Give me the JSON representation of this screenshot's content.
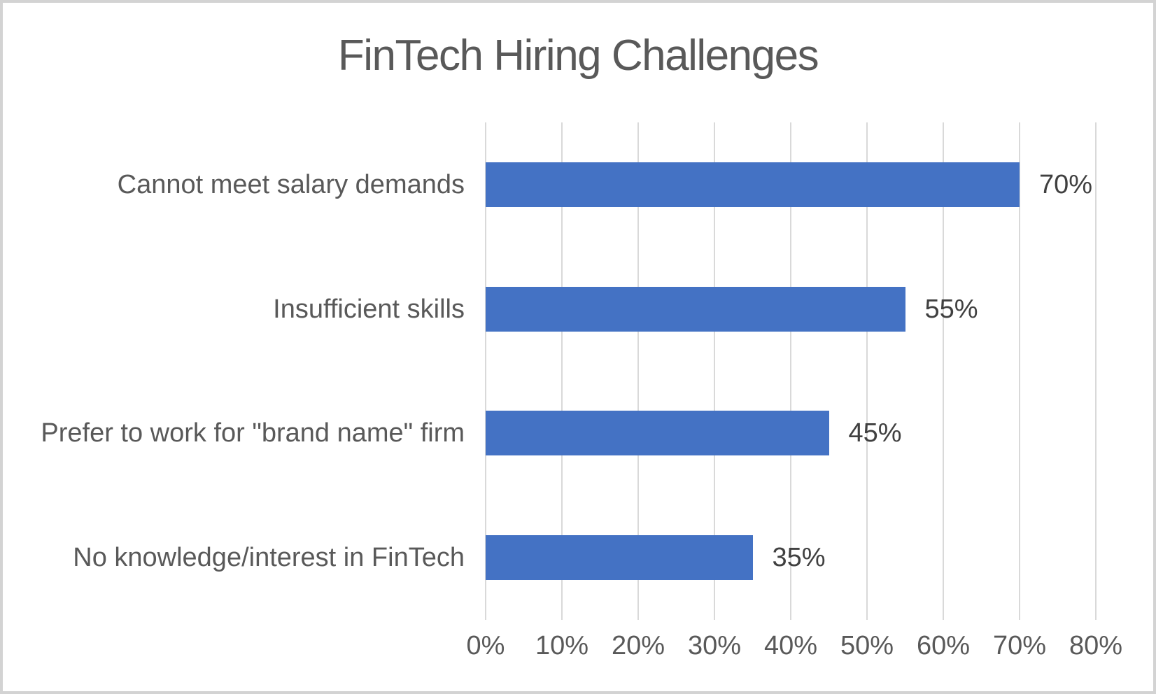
{
  "chart_data": {
    "type": "bar",
    "orientation": "horizontal",
    "title": "FinTech Hiring Challenges",
    "categories": [
      "Cannot meet salary demands",
      "Insufficient skills",
      "Prefer to work for \"brand name\" firm",
      "No knowledge/interest in FinTech"
    ],
    "values": [
      70,
      55,
      45,
      35
    ],
    "data_labels": [
      "70%",
      "55%",
      "45%",
      "35%"
    ],
    "x_ticks": [
      "0%",
      "10%",
      "20%",
      "30%",
      "40%",
      "50%",
      "60%",
      "70%",
      "80%"
    ],
    "xlim": [
      0,
      80
    ],
    "grid": true,
    "legend": false,
    "colors": {
      "bar": "#4472C4",
      "title": "#595959",
      "axis_labels": "#595959",
      "data_labels": "#404040",
      "gridlines": "#D9D9D9",
      "frame_border": "#D3D3D3",
      "background": "#FFFFFF"
    }
  }
}
